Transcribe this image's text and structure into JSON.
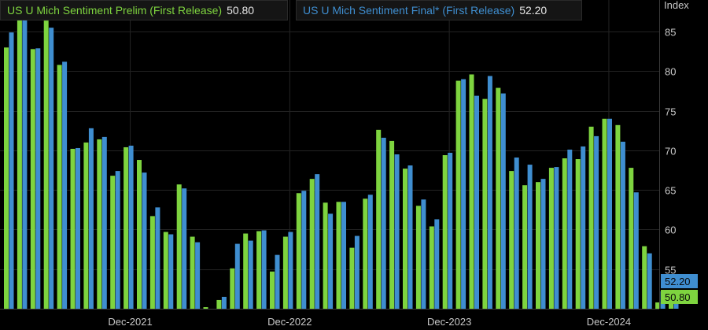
{
  "legend": {
    "prelim_label": "US U Mich Sentiment Prelim (First Release)",
    "prelim_value": "50.80",
    "final_label": "US U Mich Sentiment Final* (First Release)",
    "final_value": "52.20"
  },
  "axis": {
    "unit_label": "Index"
  },
  "badges": {
    "final_value": "52.20",
    "prelim_value": "50.80"
  },
  "colors": {
    "prelim": "#7ed43f",
    "final": "#3f8ed0",
    "background": "#000000",
    "grid": "#232323",
    "text": "#c8c8c8"
  },
  "chart_data": {
    "type": "bar",
    "x": [
      "2021-03",
      "2021-04",
      "2021-05",
      "2021-06",
      "2021-07",
      "2021-08",
      "2021-09",
      "2021-10",
      "2021-11",
      "2021-12",
      "2022-01",
      "2022-02",
      "2022-03",
      "2022-04",
      "2022-05",
      "2022-06",
      "2022-07",
      "2022-08",
      "2022-09",
      "2022-10",
      "2022-11",
      "2022-12",
      "2023-01",
      "2023-02",
      "2023-03",
      "2023-04",
      "2023-05",
      "2023-06",
      "2023-07",
      "2023-08",
      "2023-09",
      "2023-10",
      "2023-11",
      "2023-12",
      "2024-01",
      "2024-02",
      "2024-03",
      "2024-04",
      "2024-05",
      "2024-06",
      "2024-07",
      "2024-08",
      "2024-09",
      "2024-10",
      "2024-11",
      "2024-12",
      "2025-01",
      "2025-02",
      "2025-03",
      "2025-04",
      "2025-05"
    ],
    "series": [
      {
        "name": "US U Mich Sentiment Prelim (First Release)",
        "values": [
          83.0,
          86.5,
          82.8,
          86.4,
          80.8,
          70.2,
          71.0,
          71.4,
          66.8,
          70.4,
          68.8,
          61.7,
          59.7,
          65.7,
          59.1,
          50.2,
          51.1,
          55.1,
          59.5,
          59.8,
          54.7,
          59.1,
          64.6,
          66.4,
          63.4,
          63.5,
          57.7,
          63.9,
          72.6,
          71.2,
          67.7,
          63.0,
          60.4,
          69.4,
          78.8,
          79.6,
          76.5,
          77.9,
          67.4,
          65.6,
          66.0,
          67.8,
          69.0,
          68.9,
          73.0,
          74.0,
          73.2,
          67.8,
          57.9,
          50.8,
          50.8
        ]
      },
      {
        "name": "US U Mich Sentiment Final* (First Release)",
        "values": [
          84.9,
          88.3,
          82.9,
          85.5,
          81.2,
          70.3,
          72.8,
          71.7,
          67.4,
          70.6,
          67.2,
          62.8,
          59.4,
          65.2,
          58.4,
          50.0,
          51.5,
          58.2,
          58.6,
          59.9,
          56.8,
          59.7,
          64.9,
          67.0,
          62.0,
          63.5,
          59.2,
          64.4,
          71.6,
          69.5,
          68.1,
          63.8,
          61.3,
          69.7,
          79.0,
          76.9,
          79.4,
          77.2,
          69.1,
          68.2,
          66.4,
          67.9,
          70.1,
          70.5,
          71.8,
          74.0,
          71.1,
          64.7,
          57.0,
          52.2,
          52.2
        ]
      }
    ],
    "x_tick_labels": [
      "Dec-2021",
      "Dec-2022",
      "Dec-2023",
      "Dec-2024"
    ],
    "y_ticks": [
      55,
      60,
      65,
      70,
      75,
      80,
      85
    ],
    "ylim": [
      50,
      89
    ],
    "ylabel": "Index",
    "grid": true,
    "legend": "top-left"
  }
}
